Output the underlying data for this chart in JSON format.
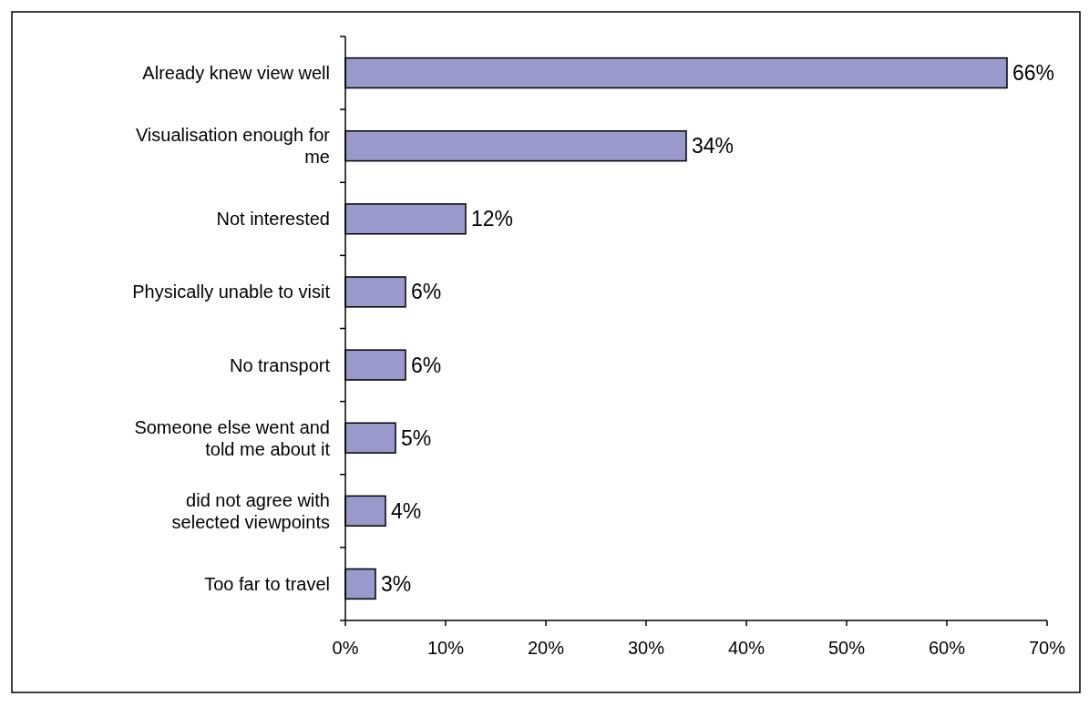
{
  "chart_data": {
    "type": "bar",
    "orientation": "horizontal",
    "categories": [
      "Already knew view well",
      "Visualisation enough for me",
      "Not interested",
      "Physically unable to visit",
      "No transport",
      "Someone else went and told me about it",
      "did not agree with selected viewpoints",
      "Too far to travel"
    ],
    "values": [
      66,
      34,
      12,
      6,
      6,
      5,
      4,
      3
    ],
    "value_labels": [
      "66%",
      "34%",
      "12%",
      "6%",
      "6%",
      "5%",
      "4%",
      "3%"
    ],
    "color": "#9999cc",
    "xlim": [
      0,
      70
    ],
    "xticks": [
      {
        "value": 0,
        "label": "0%"
      },
      {
        "value": 10,
        "label": "10%"
      },
      {
        "value": 20,
        "label": "20%"
      },
      {
        "value": 30,
        "label": "30%"
      },
      {
        "value": 40,
        "label": "40%"
      },
      {
        "value": 50,
        "label": "50%"
      },
      {
        "value": 60,
        "label": "60%"
      },
      {
        "value": 70,
        "label": "70%"
      }
    ],
    "grid": false
  }
}
